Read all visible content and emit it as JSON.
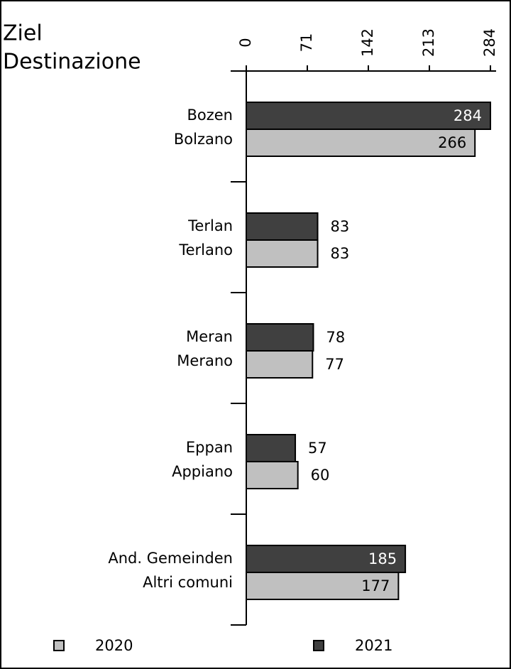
{
  "chart_data": {
    "type": "bar",
    "orientation": "horizontal",
    "title": [
      "Ziel",
      "Destinazione"
    ],
    "categories": [
      [
        "Bozen",
        "Bolzano"
      ],
      [
        "Terlan",
        "Terlano"
      ],
      [
        "Meran",
        "Merano"
      ],
      [
        "Eppan",
        "Appiano"
      ],
      [
        "And. Gemeinden",
        "Altri comuni"
      ]
    ],
    "series": [
      {
        "name": "2020",
        "color": "#c0c0c0",
        "values": [
          266,
          83,
          77,
          60,
          177
        ]
      },
      {
        "name": "2021",
        "color": "#404040",
        "values": [
          284,
          83,
          78,
          57,
          185
        ]
      }
    ],
    "xlim": [
      0,
      284
    ],
    "xticks": [
      0,
      71,
      142,
      213,
      284
    ],
    "grid": false,
    "legend": "bottom"
  }
}
